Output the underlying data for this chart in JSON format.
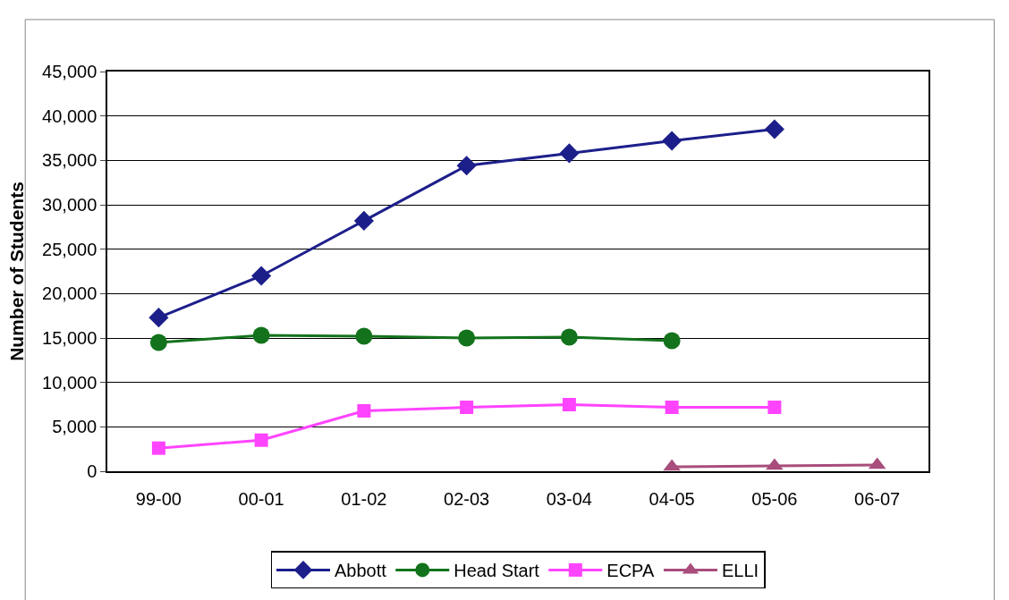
{
  "chart_data": {
    "type": "line",
    "ylabel": "Number of Students",
    "categories": [
      "99-00",
      "00-01",
      "01-02",
      "02-03",
      "03-04",
      "04-05",
      "05-06",
      "06-07"
    ],
    "series": [
      {
        "name": "Abbott",
        "color": "#1c1f8a",
        "marker": "diamond",
        "values": [
          17300,
          22000,
          28200,
          34400,
          35800,
          37200,
          38500,
          null
        ]
      },
      {
        "name": "Head Start",
        "color": "#13731c",
        "marker": "circle",
        "values": [
          14500,
          15300,
          15200,
          15000,
          15100,
          14700,
          null,
          null
        ]
      },
      {
        "name": "ECPA",
        "color": "#ff44ff",
        "marker": "square",
        "values": [
          2600,
          3500,
          6800,
          7200,
          7500,
          7200,
          7200,
          null
        ]
      },
      {
        "name": "ELLI",
        "color": "#a84d7c",
        "marker": "triangle",
        "values": [
          null,
          null,
          null,
          null,
          null,
          500,
          600,
          700
        ]
      }
    ],
    "ylim": [
      0,
      45000
    ],
    "yticks": [
      {
        "value": 0,
        "label": "0"
      },
      {
        "value": 5000,
        "label": "5,000"
      },
      {
        "value": 10000,
        "label": "10,000"
      },
      {
        "value": 15000,
        "label": "15,000"
      },
      {
        "value": 20000,
        "label": "20,000"
      },
      {
        "value": 25000,
        "label": "25,000"
      },
      {
        "value": 30000,
        "label": "30,000"
      },
      {
        "value": 35000,
        "label": "35,000"
      },
      {
        "value": 40000,
        "label": "40,000"
      },
      {
        "value": 45000,
        "label": "45,000"
      }
    ],
    "grid": "y",
    "legend": "bottom",
    "line_style": "solid"
  }
}
